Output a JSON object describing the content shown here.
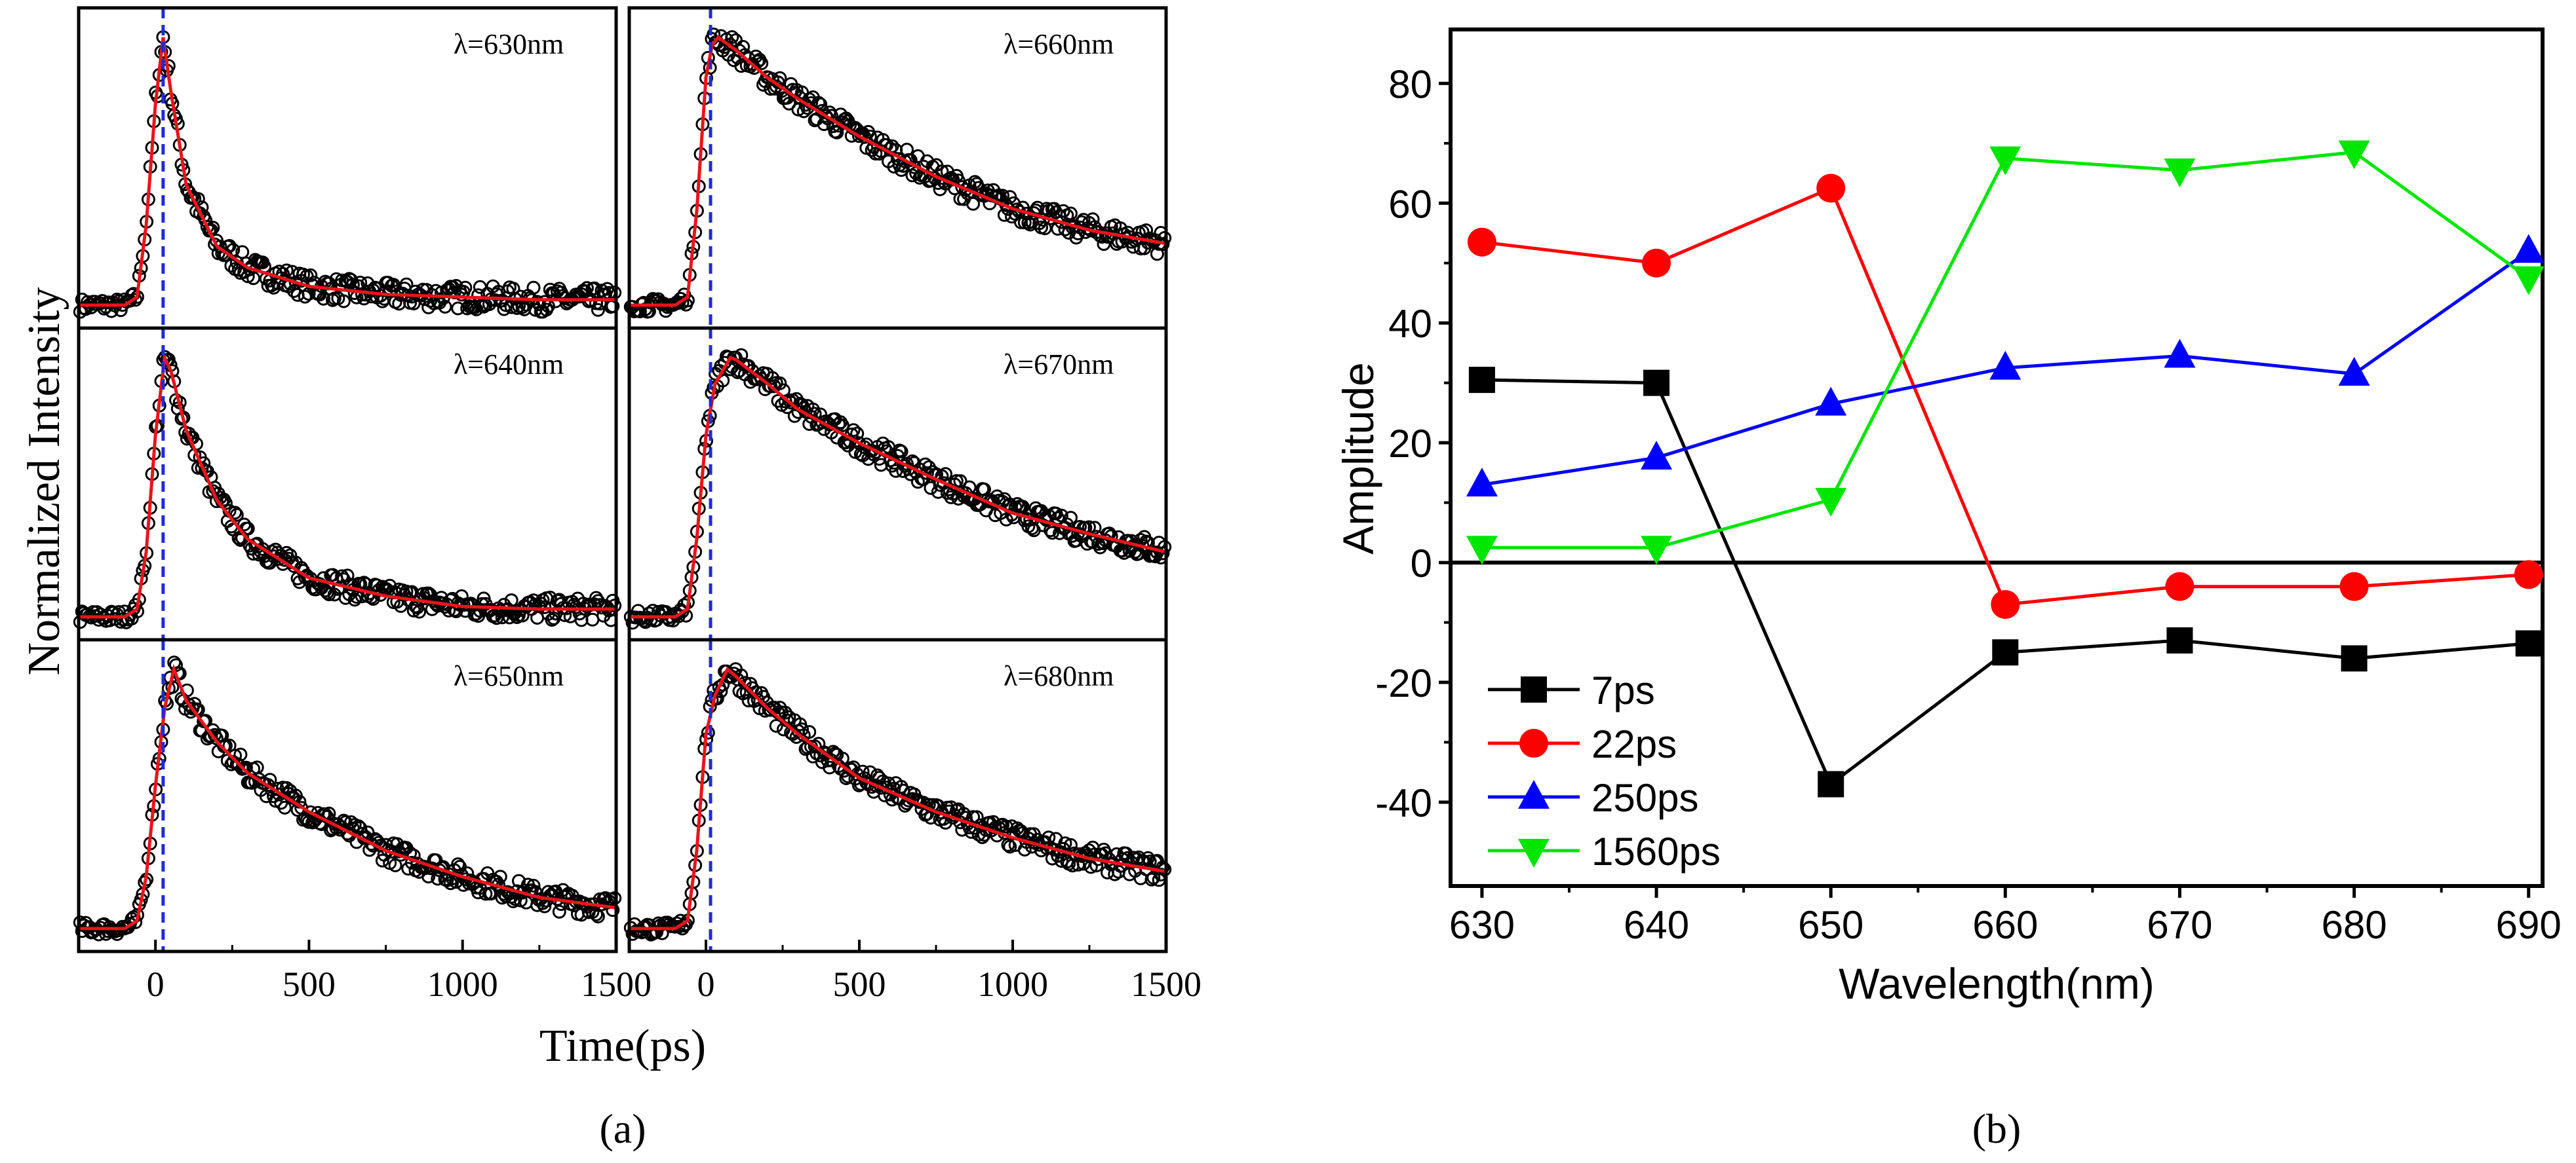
{
  "chart_data": [
    {
      "type": "scatter",
      "panel_label": "(a)",
      "xlabel": "Time(ps)",
      "ylabel": "Normalized Intensity",
      "xlim": [
        -250,
        1500
      ],
      "ylim": [
        0,
        1
      ],
      "xticks": [
        "0",
        "500",
        "1000",
        "1500"
      ],
      "xtick_values": [
        0,
        500,
        1000,
        1500
      ],
      "marker_line_time": [
        25,
        15
      ],
      "colors": {
        "data": "#000000",
        "fit": "#e8141b",
        "marker_line": "#1f2bd6"
      },
      "panels": [
        {
          "label": "λ=630nm",
          "column": 0,
          "row": 0,
          "t": [
            -250,
            -100,
            -60,
            -30,
            0,
            25,
            50,
            100,
            200,
            300,
            500,
            750,
            1000,
            1250,
            1500
          ],
          "fit": [
            0,
            0,
            0.03,
            0.3,
            0.75,
            1,
            0.8,
            0.45,
            0.22,
            0.14,
            0.07,
            0.04,
            0.03,
            0.02,
            0.02
          ]
        },
        {
          "label": "λ=640nm",
          "column": 0,
          "row": 1,
          "t": [
            -250,
            -100,
            -60,
            -30,
            0,
            30,
            50,
            100,
            200,
            300,
            500,
            750,
            1000,
            1250,
            1500
          ],
          "fit": [
            0,
            0,
            0.03,
            0.25,
            0.7,
            1,
            0.95,
            0.72,
            0.45,
            0.3,
            0.15,
            0.08,
            0.04,
            0.03,
            0.03
          ]
        },
        {
          "label": "λ=650nm",
          "column": 0,
          "row": 2,
          "t": [
            -250,
            -100,
            -60,
            -30,
            0,
            30,
            60,
            100,
            200,
            300,
            500,
            750,
            1000,
            1250,
            1500
          ],
          "fit": [
            0,
            0,
            0.03,
            0.2,
            0.55,
            0.85,
            1,
            0.88,
            0.72,
            0.6,
            0.45,
            0.3,
            0.2,
            0.12,
            0.08
          ]
        },
        {
          "label": "λ=660nm",
          "column": 1,
          "row": 0,
          "t": [
            -250,
            -100,
            -60,
            -30,
            0,
            20,
            40,
            100,
            200,
            300,
            500,
            750,
            1000,
            1250,
            1500
          ],
          "fit": [
            0,
            0,
            0.03,
            0.35,
            0.85,
            0.97,
            1,
            0.95,
            0.85,
            0.77,
            0.63,
            0.48,
            0.36,
            0.28,
            0.23
          ]
        },
        {
          "label": "λ=670nm",
          "column": 1,
          "row": 1,
          "t": [
            -250,
            -100,
            -60,
            -30,
            0,
            30,
            80,
            100,
            200,
            300,
            500,
            750,
            1000,
            1250,
            1500
          ],
          "fit": [
            0,
            0,
            0.03,
            0.3,
            0.7,
            0.9,
            1,
            0.99,
            0.9,
            0.8,
            0.67,
            0.53,
            0.4,
            0.32,
            0.25
          ]
        },
        {
          "label": "λ=680nm",
          "column": 1,
          "row": 2,
          "t": [
            -250,
            -100,
            -60,
            -30,
            0,
            30,
            70,
            100,
            200,
            300,
            500,
            750,
            1000,
            1250,
            1500
          ],
          "fit": [
            0,
            0,
            0.03,
            0.3,
            0.75,
            0.9,
            1,
            0.97,
            0.85,
            0.75,
            0.58,
            0.45,
            0.35,
            0.27,
            0.22
          ]
        }
      ]
    },
    {
      "type": "line",
      "panel_label": "(b)",
      "xlabel": "Wavelength(nm)",
      "ylabel": "Amplitude",
      "x": [
        630,
        640,
        650,
        660,
        670,
        680,
        690
      ],
      "xlim": [
        628.2,
        690.8
      ],
      "ylim": [
        -54,
        89
      ],
      "xticks": [
        "630",
        "640",
        "650",
        "660",
        "670",
        "680",
        "690"
      ],
      "yticks": [
        "-40",
        "-20",
        "0",
        "20",
        "40",
        "60",
        "80"
      ],
      "ytick_values": [
        -40,
        -20,
        0,
        20,
        40,
        60,
        80
      ],
      "zero_line": true,
      "legend_position": "bottom-left",
      "series": [
        {
          "name": "7ps",
          "color": "#000000",
          "marker": "square",
          "values": [
            30.5,
            30,
            -37,
            -15,
            -13,
            -16,
            -13.5
          ]
        },
        {
          "name": "22ps",
          "color": "#ff0000",
          "marker": "circle",
          "values": [
            53.5,
            50,
            62.5,
            -7,
            -4,
            -4,
            -2
          ]
        },
        {
          "name": "250ps",
          "color": "#0000ff",
          "marker": "triangle-up",
          "values": [
            13,
            17.5,
            26.5,
            32.5,
            34.5,
            31.5,
            52
          ]
        },
        {
          "name": "1560ps",
          "color": "#00e600",
          "marker": "triangle-down",
          "values": [
            2.5,
            2.5,
            10.5,
            67.5,
            65.5,
            68.5,
            47.5
          ]
        }
      ]
    }
  ]
}
